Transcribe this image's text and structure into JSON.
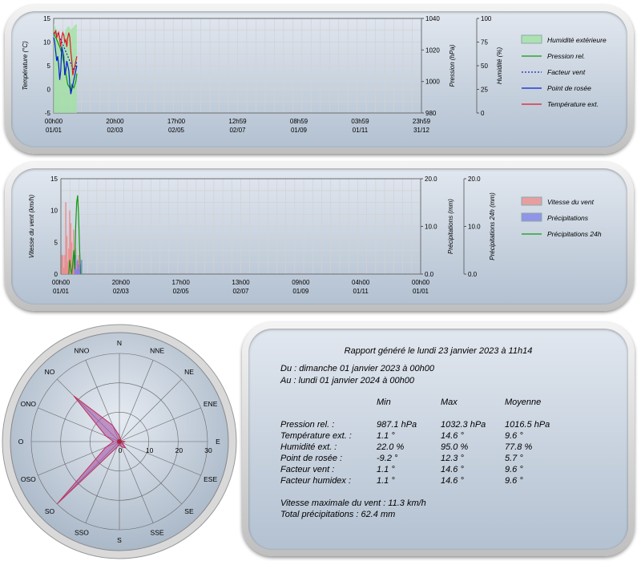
{
  "colors": {
    "temperature": "#dd1a22",
    "dewpoint": "#0a1fd0",
    "pressure": "#109a10",
    "windchill": "#2020c0",
    "humidity": "#9fe29f",
    "wind_speed": "#ee8888",
    "precipitation": "#7c7ce8",
    "precip24": "#109a10",
    "rose": "#a34aa3",
    "grid": "#d2d2d2"
  },
  "chart_data": [
    {
      "type": "line",
      "title": "",
      "axes": {
        "left": {
          "label": "Température (°C)",
          "range": [
            -5,
            15
          ],
          "ticks": [
            "-5",
            "0",
            "5",
            "10",
            "15"
          ]
        },
        "right1": {
          "label": "Pression (hPa)",
          "range": [
            980,
            1040
          ],
          "ticks": [
            "980",
            "1000",
            "1020",
            "1040"
          ]
        },
        "right2": {
          "label": "Humidité (%)",
          "range": [
            0,
            100
          ],
          "ticks": [
            "0",
            "25",
            "50",
            "75",
            "100"
          ]
        }
      },
      "x_ticks": [
        {
          "time": "00h00",
          "date": "01/01"
        },
        {
          "time": "20h00",
          "date": "02/03"
        },
        {
          "time": "17h00",
          "date": "02/05"
        },
        {
          "time": "12h59",
          "date": "02/07"
        },
        {
          "time": "08h59",
          "date": "01/09"
        },
        {
          "time": "03h59",
          "date": "01/11"
        },
        {
          "time": "23h59",
          "date": "31/12"
        }
      ],
      "x_range_days": [
        0,
        365
      ],
      "grid": true,
      "legend_position": "right",
      "legend": [
        "Humidité extérieure",
        "Pression rel.",
        "Facteur vent",
        "Point de rosée",
        "Température ext."
      ],
      "series": [
        {
          "name": "Humidité extérieure",
          "type": "area",
          "axis": "right2",
          "x": [
            0,
            1,
            3,
            5,
            7,
            9,
            11,
            13,
            15,
            17,
            19,
            21,
            23
          ],
          "values": [
            95,
            92,
            88,
            80,
            70,
            75,
            85,
            90,
            92,
            88,
            90,
            93,
            94
          ]
        },
        {
          "name": "Pression rel.",
          "axis": "right1",
          "x": [
            0,
            2,
            4,
            6,
            8,
            10,
            12,
            14,
            16,
            17,
            18,
            20,
            22,
            23
          ],
          "values": [
            1030,
            1028,
            1025,
            1022,
            1018,
            1012,
            1005,
            998,
            996,
            994,
            998,
            996,
            1000,
            1005
          ]
        },
        {
          "name": "Facteur vent",
          "axis": "left",
          "dashed": true,
          "x": [
            0,
            2,
            4,
            6,
            8,
            10,
            12,
            14,
            16,
            18,
            20,
            22,
            23
          ],
          "values": [
            12,
            11.5,
            12,
            11,
            10,
            9,
            8,
            7,
            6,
            5,
            4,
            5,
            6
          ]
        },
        {
          "name": "Point de rosée",
          "axis": "left",
          "x": [
            0,
            1,
            2,
            3,
            4,
            5,
            6,
            7,
            8,
            9,
            10,
            11,
            12,
            13,
            14,
            15,
            16,
            17,
            18,
            19,
            20,
            21,
            22,
            23
          ],
          "values": [
            11,
            10,
            8,
            6,
            7,
            5,
            2,
            4,
            9,
            8,
            7,
            3,
            4,
            6,
            5,
            4,
            1,
            -1,
            0,
            1,
            2,
            3,
            4,
            5
          ]
        },
        {
          "name": "Température ext.",
          "axis": "left",
          "x": [
            0,
            1,
            2,
            3,
            4,
            5,
            6,
            7,
            8,
            9,
            10,
            11,
            12,
            13,
            14,
            15,
            16,
            17,
            18,
            19,
            20,
            21,
            22,
            23
          ],
          "values": [
            12,
            11.8,
            12.5,
            11,
            11.5,
            12,
            10.5,
            9,
            11,
            12,
            11.5,
            10,
            10.5,
            9,
            11,
            12,
            11,
            8,
            6,
            3,
            4,
            5,
            6,
            7
          ]
        }
      ]
    },
    {
      "type": "bar",
      "title": "",
      "axes": {
        "left": {
          "label": "Vitesse du vent (km/h)",
          "range": [
            0,
            15
          ],
          "ticks": [
            "0",
            "5",
            "10",
            "15"
          ]
        },
        "right1": {
          "label": "Précipitations (mm)",
          "range": [
            0,
            20
          ],
          "ticks": [
            "0.0",
            "10.0",
            "20.0"
          ]
        },
        "right2": {
          "label": "Précipitations 24h (mm)",
          "range": [
            0,
            20
          ],
          "ticks": [
            "0.0",
            "10.0",
            "20.0"
          ]
        }
      },
      "x_ticks": [
        {
          "time": "00h00",
          "date": "01/01"
        },
        {
          "time": "20h00",
          "date": "02/03"
        },
        {
          "time": "17h00",
          "date": "02/05"
        },
        {
          "time": "13h00",
          "date": "02/07"
        },
        {
          "time": "09h00",
          "date": "01/09"
        },
        {
          "time": "04h00",
          "date": "01/11"
        },
        {
          "time": "00h00",
          "date": "01/01"
        }
      ],
      "x_range_days": [
        0,
        365
      ],
      "grid": true,
      "legend_position": "right",
      "legend": [
        "Vitesse du vent",
        "Précipitations",
        "Précipitations 24h"
      ],
      "series": [
        {
          "name": "Vitesse du vent",
          "axis": "left",
          "x": [
            1,
            2,
            3,
            4,
            5,
            6,
            7,
            8,
            9,
            10,
            11,
            12,
            13,
            14,
            15,
            16,
            17,
            18,
            19
          ],
          "values": [
            3,
            3,
            1,
            3,
            11.3,
            6,
            2,
            4,
            10,
            8,
            5,
            2,
            7,
            3,
            4,
            2,
            1,
            3,
            2
          ]
        },
        {
          "name": "Précipitations",
          "axis": "right1",
          "x": [
            14,
            15,
            16,
            17,
            18,
            19,
            20,
            21
          ],
          "values": [
            2,
            4,
            1,
            3,
            2,
            1,
            2,
            3
          ]
        },
        {
          "name": "Précipitations 24h",
          "axis": "right2",
          "style": "line",
          "x": [
            8,
            9,
            10,
            11,
            12,
            13,
            14,
            15,
            16,
            17,
            18,
            19,
            20
          ],
          "values": [
            0,
            3,
            1,
            0,
            2,
            5,
            1,
            10,
            15,
            16.5,
            12,
            5,
            0
          ]
        }
      ]
    },
    {
      "type": "radar",
      "title": "",
      "directions": [
        "N",
        "NNE",
        "NE",
        "ENE",
        "E",
        "ESE",
        "SE",
        "SSE",
        "S",
        "SSO",
        "SO",
        "OSO",
        "O",
        "ONO",
        "NO",
        "NNO"
      ],
      "rings": [
        10,
        20,
        30
      ],
      "ring_labels": [
        "0",
        "10",
        "20",
        "30"
      ],
      "values": [
        2,
        1,
        0.5,
        0.5,
        2,
        1,
        3,
        2,
        1,
        2,
        30,
        5,
        2,
        5,
        22,
        6
      ]
    }
  ],
  "report": {
    "title": "Rapport généré le lundi 23 janvier 2023 à 11h14",
    "from": "Du : dimanche 01 janvier 2023 à 00h00",
    "to": "Au : lundi 01 janvier 2024 à 00h00",
    "columns": [
      "Min",
      "Max",
      "Moyenne"
    ],
    "rows": [
      {
        "label": "Pression rel. :",
        "min": "987.1 hPa",
        "max": "1032.3 hPa",
        "avg": "1016.5 hPa"
      },
      {
        "label": "Température ext. :",
        "min": "1.1 °",
        "max": "14.6 °",
        "avg": "9.6 °"
      },
      {
        "label": "Humidité ext. :",
        "min": "22.0 %",
        "max": "95.0 %",
        "avg": "77.8 %"
      },
      {
        "label": "Point de rosée :",
        "min": "-9.2 °",
        "max": "12.3 °",
        "avg": "5.7 °"
      },
      {
        "label": "Facteur vent :",
        "min": "1.1 °",
        "max": "14.6 °",
        "avg": "9.6 °"
      },
      {
        "label": "Facteur humidex :",
        "min": "1.1 °",
        "max": "14.6 °",
        "avg": "9.6 °"
      }
    ],
    "max_wind": "Vitesse maximale du vent : 11.3 km/h",
    "total_precip": "Total précipitations : 62.4 mm"
  }
}
